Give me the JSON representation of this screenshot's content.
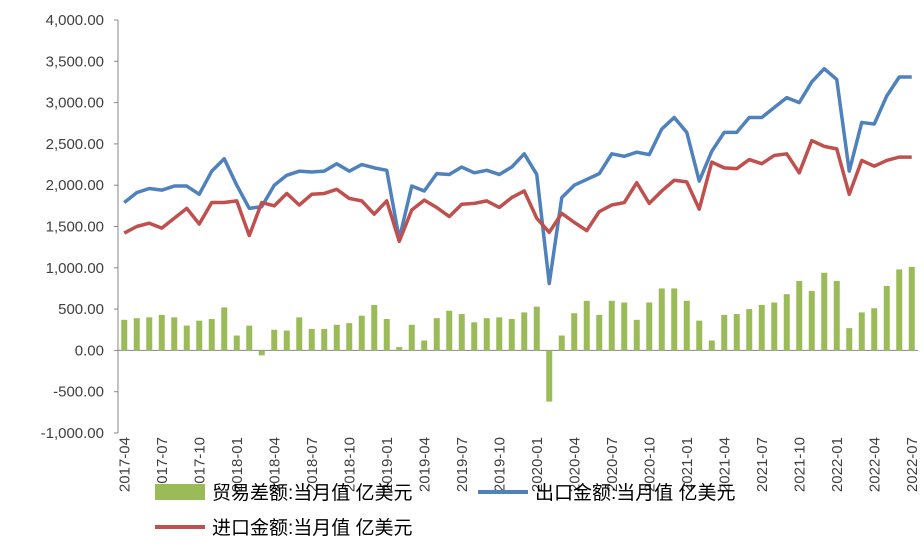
{
  "chart_data": {
    "type": "bar_line",
    "categories": [
      "2017-04",
      null,
      null,
      "2017-07",
      null,
      null,
      "2017-10",
      null,
      null,
      "2018-01",
      null,
      null,
      "2018-04",
      null,
      null,
      "2018-07",
      null,
      null,
      "2018-10",
      null,
      null,
      "2019-01",
      null,
      null,
      "2019-04",
      null,
      null,
      "2019-07",
      null,
      null,
      "2019-10",
      null,
      null,
      "2020-01",
      null,
      null,
      "2020-04",
      null,
      null,
      "2020-07",
      null,
      null,
      "2020-10",
      null,
      null,
      "2021-01",
      null,
      null,
      "2021-04",
      null,
      null,
      "2021-07",
      null,
      null,
      "2021-10",
      null,
      null,
      "2022-01",
      null,
      null,
      "2022-04",
      null,
      null,
      "2022-07"
    ],
    "series": [
      {
        "name": "贸易差额:当月值 亿美元",
        "kind": "bar",
        "color": "#9bbb59",
        "values": [
          370,
          390,
          400,
          430,
          400,
          300,
          360,
          380,
          520,
          180,
          300,
          -60,
          250,
          240,
          400,
          260,
          260,
          310,
          330,
          420,
          550,
          380,
          40,
          310,
          120,
          390,
          480,
          440,
          340,
          390,
          400,
          380,
          460,
          530,
          -620,
          180,
          450,
          600,
          430,
          600,
          580,
          370,
          580,
          750,
          750,
          600,
          360,
          120,
          430,
          440,
          500,
          550,
          580,
          680,
          840,
          720,
          940,
          840,
          270,
          460,
          510,
          780,
          980,
          1010
        ]
      },
      {
        "name": "出口金额:当月值 亿美元",
        "kind": "line",
        "color": "#4f81bd",
        "values": [
          1790,
          1910,
          1960,
          1940,
          1990,
          1990,
          1890,
          2170,
          2320,
          2000,
          1720,
          1740,
          2000,
          2120,
          2170,
          2160,
          2170,
          2260,
          2170,
          2250,
          2210,
          2180,
          1350,
          1990,
          1930,
          2140,
          2130,
          2220,
          2150,
          2180,
          2130,
          2220,
          2380,
          2130,
          810,
          1850,
          2000,
          2070,
          2140,
          2380,
          2350,
          2400,
          2370,
          2680,
          2820,
          2640,
          2050,
          2410,
          2640,
          2640,
          2820,
          2820,
          2940,
          3060,
          3000,
          3250,
          3410,
          3280,
          2170,
          2760,
          2740,
          3080,
          3310,
          3310
        ]
      },
      {
        "name": "进口金额:当月值 亿美元",
        "kind": "line",
        "color": "#c0504d",
        "values": [
          1420,
          1500,
          1540,
          1480,
          1600,
          1720,
          1530,
          1790,
          1790,
          1810,
          1390,
          1790,
          1750,
          1900,
          1760,
          1890,
          1900,
          1950,
          1840,
          1810,
          1650,
          1810,
          1320,
          1700,
          1820,
          1730,
          1620,
          1770,
          1780,
          1810,
          1730,
          1850,
          1930,
          1600,
          1430,
          1660,
          1550,
          1450,
          1680,
          1760,
          1790,
          2030,
          1780,
          1930,
          2060,
          2040,
          1710,
          2280,
          2210,
          2200,
          2310,
          2260,
          2360,
          2380,
          2150,
          2540,
          2470,
          2440,
          1890,
          2300,
          2230,
          2300,
          2340,
          2340
        ]
      }
    ],
    "ylim": [
      -1000,
      4000
    ],
    "yticks": [
      {
        "value": -1000,
        "label": "-1,000.00"
      },
      {
        "value": -500,
        "label": "-500.00"
      },
      {
        "value": 0,
        "label": "0.00"
      },
      {
        "value": 500,
        "label": "500.00"
      },
      {
        "value": 1000,
        "label": "1,000.00"
      },
      {
        "value": 1500,
        "label": "1,500.00"
      },
      {
        "value": 2000,
        "label": "2,000.00"
      },
      {
        "value": 2500,
        "label": "2,500.00"
      },
      {
        "value": 3000,
        "label": "3,000.00"
      },
      {
        "value": 3500,
        "label": "3,500.00"
      },
      {
        "value": 4000,
        "label": "4,000.00"
      }
    ]
  }
}
